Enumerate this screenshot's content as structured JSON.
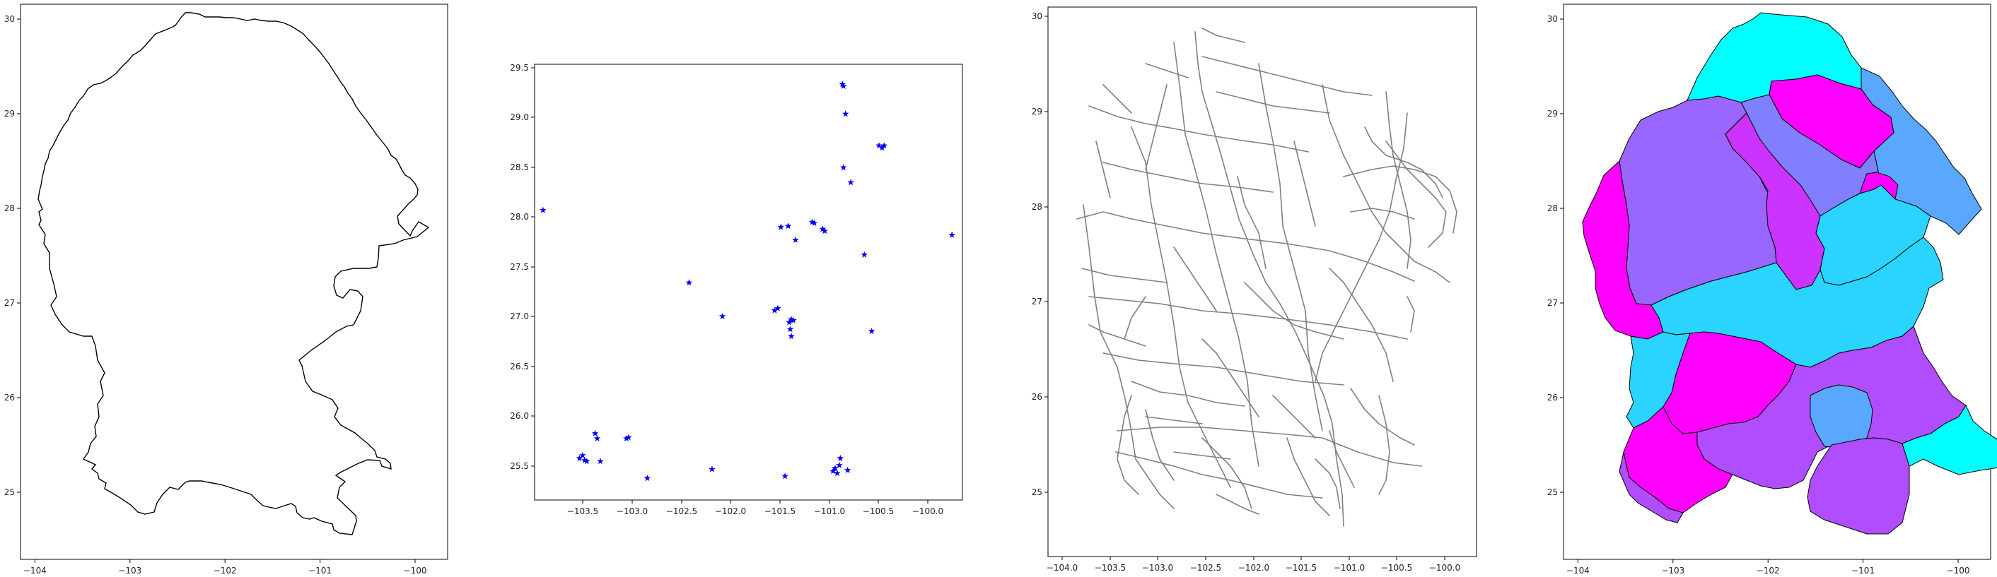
{
  "colors": {
    "outline": "#000000",
    "points": "#0000ff",
    "roads": "#808080",
    "choropleth_palette": [
      "#ff00ff",
      "#cc33ff",
      "#9966ff",
      "#7f7fff",
      "#5aa7ff",
      "#2ad4ff",
      "#00ffff"
    ]
  },
  "panels": [
    {
      "type": "outline",
      "xticks": [
        "−104",
        "−103",
        "−102",
        "−101",
        "−100"
      ],
      "yticks": [
        "25",
        "26",
        "27",
        "28",
        "29",
        "30"
      ]
    },
    {
      "type": "points",
      "xticks": [
        "−103.5",
        "−103.0",
        "−102.5",
        "−102.0",
        "−101.5",
        "−101.0",
        "−100.5",
        "−100.0"
      ],
      "yticks": [
        "25.5",
        "26.0",
        "26.5",
        "27.0",
        "27.5",
        "28.0",
        "28.5",
        "29.0",
        "29.5"
      ]
    },
    {
      "type": "roads",
      "xticks": [
        "−104.0",
        "−103.5",
        "−103.0",
        "−102.5",
        "−102.0",
        "−101.5",
        "−101.0",
        "−100.5",
        "−100.0"
      ],
      "yticks": [
        "25",
        "26",
        "27",
        "28",
        "29",
        "30"
      ]
    },
    {
      "type": "choropleth",
      "xticks": [
        "−104",
        "−103",
        "−102",
        "−101",
        "−100"
      ],
      "yticks": [
        "25",
        "26",
        "27",
        "28",
        "29",
        "30"
      ]
    }
  ],
  "chart_data": {
    "type": "scatter",
    "marker": "star",
    "points": [
      {
        "x": -103.8,
        "y": 28.05
      },
      {
        "x": -103.45,
        "y": 25.55
      },
      {
        "x": -103.42,
        "y": 25.58
      },
      {
        "x": -103.4,
        "y": 25.53
      },
      {
        "x": -103.38,
        "y": 25.52
      },
      {
        "x": -103.3,
        "y": 25.8
      },
      {
        "x": -103.28,
        "y": 25.75
      },
      {
        "x": -103.25,
        "y": 25.52
      },
      {
        "x": -103.0,
        "y": 25.75
      },
      {
        "x": -102.98,
        "y": 25.76
      },
      {
        "x": -102.8,
        "y": 25.35
      },
      {
        "x": -102.4,
        "y": 27.32
      },
      {
        "x": -102.18,
        "y": 25.44
      },
      {
        "x": -102.08,
        "y": 26.98
      },
      {
        "x": -101.58,
        "y": 27.04
      },
      {
        "x": -101.55,
        "y": 27.06
      },
      {
        "x": -101.52,
        "y": 27.88
      },
      {
        "x": -101.45,
        "y": 27.89
      },
      {
        "x": -101.48,
        "y": 25.37
      },
      {
        "x": -101.42,
        "y": 26.95
      },
      {
        "x": -101.44,
        "y": 26.92
      },
      {
        "x": -101.43,
        "y": 26.85
      },
      {
        "x": -101.42,
        "y": 26.78
      },
      {
        "x": -101.38,
        "y": 27.75
      },
      {
        "x": -101.4,
        "y": 26.94
      },
      {
        "x": -101.22,
        "y": 27.93
      },
      {
        "x": -101.2,
        "y": 27.92
      },
      {
        "x": -101.12,
        "y": 27.86
      },
      {
        "x": -101.1,
        "y": 27.84
      },
      {
        "x": -101.02,
        "y": 25.42
      },
      {
        "x": -101.0,
        "y": 25.45
      },
      {
        "x": -100.98,
        "y": 25.4
      },
      {
        "x": -100.95,
        "y": 25.55
      },
      {
        "x": -100.96,
        "y": 25.48
      },
      {
        "x": -100.92,
        "y": 28.48
      },
      {
        "x": -100.93,
        "y": 29.32
      },
      {
        "x": -100.92,
        "y": 29.3
      },
      {
        "x": -100.9,
        "y": 29.02
      },
      {
        "x": -100.88,
        "y": 25.43
      },
      {
        "x": -100.85,
        "y": 28.33
      },
      {
        "x": -100.72,
        "y": 27.6
      },
      {
        "x": -100.65,
        "y": 26.83
      },
      {
        "x": -100.58,
        "y": 28.7
      },
      {
        "x": -100.55,
        "y": 28.68
      },
      {
        "x": -100.53,
        "y": 28.7
      },
      {
        "x": -99.88,
        "y": 27.8
      }
    ],
    "xlim": [
      -103.88,
      -99.78
    ],
    "ylim": [
      25.13,
      29.52
    ]
  }
}
